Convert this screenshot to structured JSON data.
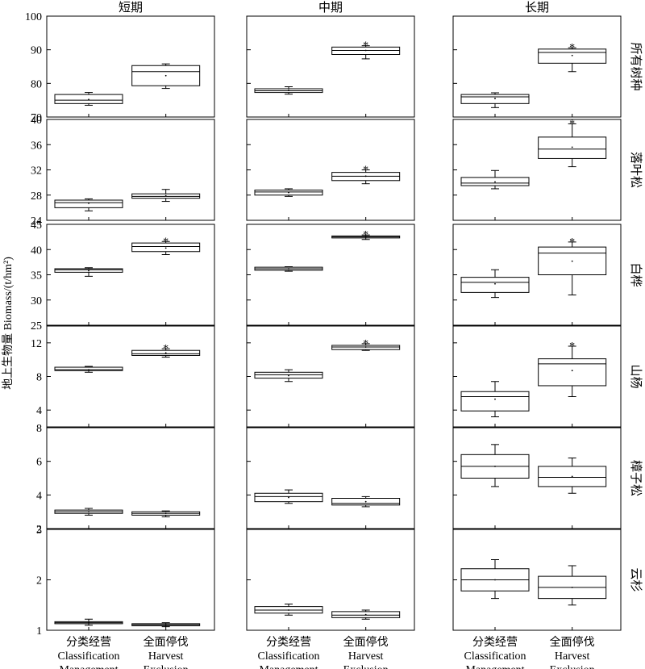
{
  "chart_data": {
    "type": "box",
    "ylabel": "地上生物量 Biomass/(t/hm²)",
    "columns": [
      "短期",
      "中期",
      "长期"
    ],
    "categories": [
      {
        "zh": "分类经营",
        "en1": "Classification",
        "en2": "Management"
      },
      {
        "zh": "全面停伐",
        "en1": "Harvest",
        "en2": "Exclusion"
      }
    ],
    "significance_marker": "*",
    "rows": [
      {
        "label": "所有树种",
        "ylim": [
          70,
          100
        ],
        "yticks": [
          70,
          80,
          90,
          100
        ],
        "panels": [
          {
            "boxes": [
              {
                "min": 73.5,
                "q1": 74,
                "median": 75,
                "q3": 76.7,
                "max": 77.3,
                "mean": 75.2,
                "sig": false
              },
              {
                "min": 78.5,
                "q1": 79.3,
                "median": 83.5,
                "q3": 85.3,
                "max": 85.8,
                "mean": 82.3,
                "sig": false
              }
            ]
          },
          {
            "boxes": [
              {
                "min": 76.8,
                "q1": 77.3,
                "median": 77.8,
                "q3": 78.4,
                "max": 79,
                "mean": 77.9,
                "sig": false
              },
              {
                "min": 87.3,
                "q1": 88.6,
                "median": 89.8,
                "q3": 90.8,
                "max": 91.2,
                "mean": 89.8,
                "sig": true
              }
            ]
          },
          {
            "boxes": [
              {
                "min": 72.8,
                "q1": 74,
                "median": 76,
                "q3": 76.7,
                "max": 77.2,
                "mean": 75.5,
                "sig": false
              },
              {
                "min": 83.5,
                "q1": 86,
                "median": 89.2,
                "q3": 90.2,
                "max": 90.6,
                "mean": 88.3,
                "sig": true
              }
            ]
          }
        ]
      },
      {
        "label": "落叶松",
        "ylim": [
          24,
          40
        ],
        "yticks": [
          24,
          28,
          32,
          36,
          40
        ],
        "panels": [
          {
            "boxes": [
              {
                "min": 25.5,
                "q1": 26,
                "median": 26.8,
                "q3": 27.2,
                "max": 27.4,
                "mean": 26.7,
                "sig": false
              },
              {
                "min": 27,
                "q1": 27.5,
                "median": 27.8,
                "q3": 28.2,
                "max": 28.9,
                "mean": 27.9,
                "sig": false
              }
            ]
          },
          {
            "boxes": [
              {
                "min": 27.8,
                "q1": 28,
                "median": 28.5,
                "q3": 28.8,
                "max": 29,
                "mean": 28.4,
                "sig": false
              },
              {
                "min": 29.8,
                "q1": 30.3,
                "median": 31,
                "q3": 31.6,
                "max": 32,
                "mean": 31,
                "sig": true
              }
            ]
          },
          {
            "boxes": [
              {
                "min": 29,
                "q1": 29.5,
                "median": 29.9,
                "q3": 30.8,
                "max": 31.9,
                "mean": 30.1,
                "sig": false
              },
              {
                "min": 32.5,
                "q1": 33.8,
                "median": 35.3,
                "q3": 37.2,
                "max": 39.3,
                "mean": 35.6,
                "sig": true
              }
            ]
          }
        ]
      },
      {
        "label": "白桦",
        "ylim": [
          25,
          45
        ],
        "yticks": [
          25,
          30,
          35,
          40,
          45
        ],
        "panels": [
          {
            "boxes": [
              {
                "min": 34.7,
                "q1": 35.5,
                "median": 36,
                "q3": 36.2,
                "max": 36.4,
                "mean": 35.8,
                "sig": false
              },
              {
                "min": 39,
                "q1": 39.6,
                "median": 40.6,
                "q3": 41.3,
                "max": 41.6,
                "mean": 40.3,
                "sig": true
              }
            ]
          },
          {
            "boxes": [
              {
                "min": 35.7,
                "q1": 35.9,
                "median": 36.2,
                "q3": 36.5,
                "max": 36.6,
                "mean": 36.2,
                "sig": false
              },
              {
                "min": 42,
                "q1": 42.3,
                "median": 42.5,
                "q3": 42.7,
                "max": 42.9,
                "mean": 42.5,
                "sig": true
              }
            ]
          },
          {
            "boxes": [
              {
                "min": 30.5,
                "q1": 31.5,
                "median": 33.5,
                "q3": 34.5,
                "max": 36,
                "mean": 33.2,
                "sig": false
              },
              {
                "min": 31,
                "q1": 35,
                "median": 39.3,
                "q3": 40.5,
                "max": 41.5,
                "mean": 37.7,
                "sig": true
              }
            ]
          }
        ]
      },
      {
        "label": "山杨",
        "ylim": [
          2,
          14
        ],
        "yticks": [
          4,
          8,
          12
        ],
        "panels": [
          {
            "boxes": [
              {
                "min": 8.5,
                "q1": 8.7,
                "median": 8.8,
                "q3": 9.1,
                "max": 9.2,
                "mean": 8.8,
                "sig": false
              },
              {
                "min": 10.3,
                "q1": 10.5,
                "median": 10.7,
                "q3": 11.1,
                "max": 11.3,
                "mean": 10.8,
                "sig": true
              }
            ]
          },
          {
            "boxes": [
              {
                "min": 7.4,
                "q1": 7.8,
                "median": 8.2,
                "q3": 8.5,
                "max": 8.8,
                "mean": 8.1,
                "sig": false
              },
              {
                "min": 11.1,
                "q1": 11.2,
                "median": 11.5,
                "q3": 11.7,
                "max": 11.9,
                "mean": 11.5,
                "sig": true
              }
            ]
          },
          {
            "boxes": [
              {
                "min": 3.2,
                "q1": 3.9,
                "median": 5.6,
                "q3": 6.2,
                "max": 7.4,
                "mean": 5.3,
                "sig": false
              },
              {
                "min": 5.6,
                "q1": 6.9,
                "median": 9.5,
                "q3": 10.1,
                "max": 11.6,
                "mean": 8.7,
                "sig": true
              }
            ]
          }
        ]
      },
      {
        "label": "樟子松",
        "ylim": [
          2,
          8
        ],
        "yticks": [
          2,
          4,
          6,
          8
        ],
        "panels": [
          {
            "boxes": [
              {
                "min": 2.8,
                "q1": 2.9,
                "median": 3,
                "q3": 3.1,
                "max": 3.2,
                "mean": 3,
                "sig": false
              },
              {
                "min": 2.7,
                "q1": 2.8,
                "median": 2.9,
                "q3": 3,
                "max": 3.05,
                "mean": 2.9,
                "sig": false
              }
            ]
          },
          {
            "boxes": [
              {
                "min": 3.5,
                "q1": 3.6,
                "median": 3.9,
                "q3": 4.1,
                "max": 4.3,
                "mean": 3.85,
                "sig": false
              },
              {
                "min": 3.3,
                "q1": 3.4,
                "median": 3.5,
                "q3": 3.8,
                "max": 3.9,
                "mean": 3.6,
                "sig": false
              }
            ]
          },
          {
            "boxes": [
              {
                "min": 4.5,
                "q1": 5,
                "median": 5.7,
                "q3": 6.4,
                "max": 7,
                "mean": 5.7,
                "sig": false
              },
              {
                "min": 4.1,
                "q1": 4.5,
                "median": 5.05,
                "q3": 5.7,
                "max": 6.2,
                "mean": 5.1,
                "sig": false
              }
            ]
          }
        ]
      },
      {
        "label": "云杉",
        "ylim": [
          1,
          3
        ],
        "yticks": [
          1,
          2,
          3
        ],
        "panels": [
          {
            "boxes": [
              {
                "min": 1.1,
                "q1": 1.13,
                "median": 1.15,
                "q3": 1.17,
                "max": 1.22,
                "mean": 1.15,
                "sig": false
              },
              {
                "min": 1.07,
                "q1": 1.09,
                "median": 1.11,
                "q3": 1.13,
                "max": 1.15,
                "mean": 1.11,
                "sig": false
              }
            ]
          },
          {
            "boxes": [
              {
                "min": 1.3,
                "q1": 1.34,
                "median": 1.4,
                "q3": 1.47,
                "max": 1.52,
                "mean": 1.4,
                "sig": false
              },
              {
                "min": 1.22,
                "q1": 1.25,
                "median": 1.3,
                "q3": 1.37,
                "max": 1.4,
                "mean": 1.31,
                "sig": false
              }
            ]
          },
          {
            "boxes": [
              {
                "min": 1.63,
                "q1": 1.78,
                "median": 2,
                "q3": 2.22,
                "max": 2.4,
                "mean": 2,
                "sig": false
              },
              {
                "min": 1.5,
                "q1": 1.63,
                "median": 1.85,
                "q3": 2.07,
                "max": 2.28,
                "mean": 1.85,
                "sig": false
              }
            ]
          }
        ]
      }
    ]
  }
}
